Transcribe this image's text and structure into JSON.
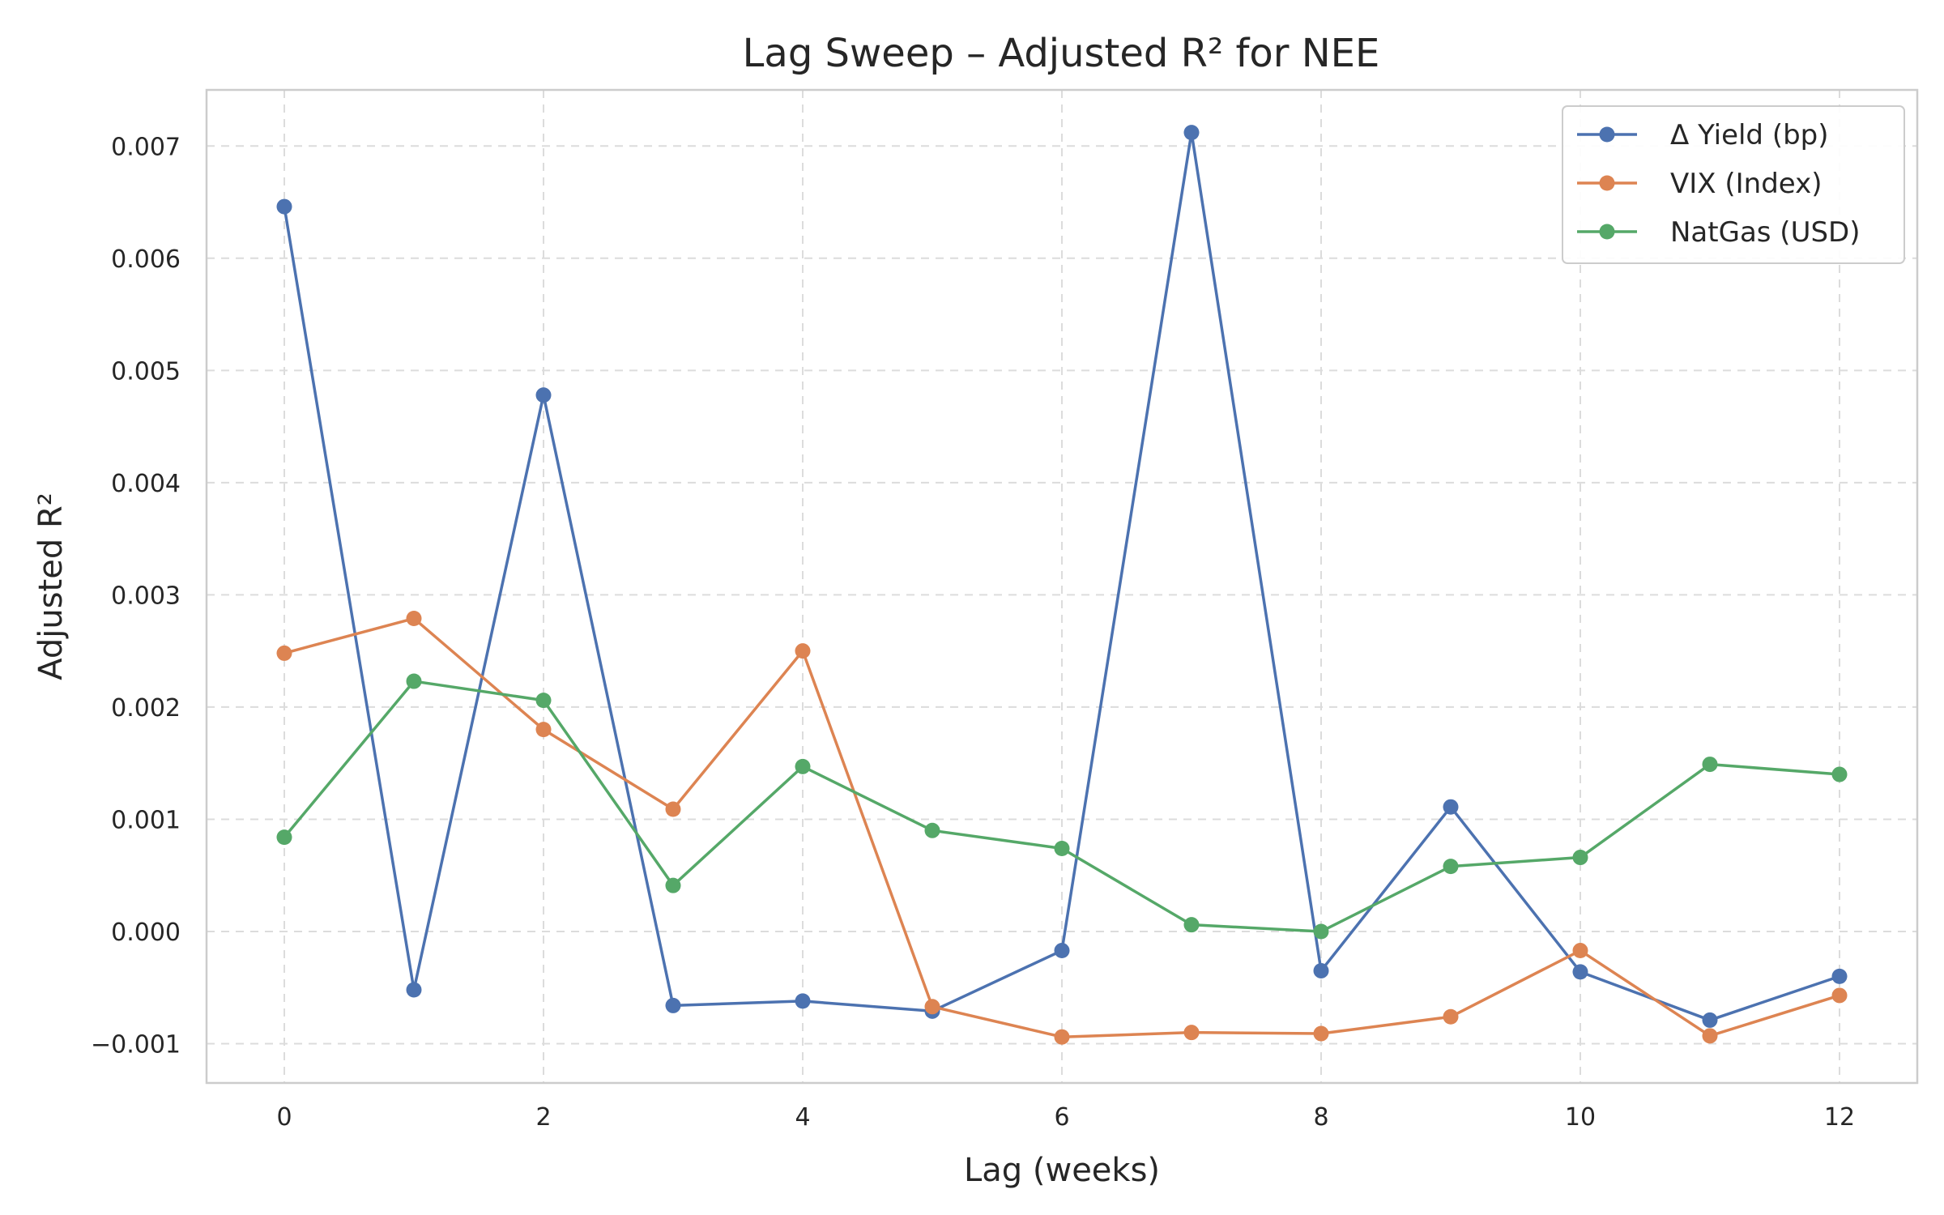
{
  "chart_data": {
    "type": "line",
    "title": "Lag Sweep – Adjusted R² for NEE",
    "xlabel": "Lag (weeks)",
    "ylabel": "Adjusted R²",
    "xlim": [
      -0.6,
      12.6
    ],
    "ylim": [
      -0.00135,
      0.0075
    ],
    "x_ticks": [
      0,
      2,
      4,
      6,
      8,
      10,
      12
    ],
    "x_tick_labels": [
      "0",
      "2",
      "4",
      "6",
      "8",
      "10",
      "12"
    ],
    "y_ticks": [
      -0.001,
      0.0,
      0.001,
      0.002,
      0.003,
      0.004,
      0.005,
      0.006,
      0.007
    ],
    "y_tick_labels": [
      "−0.001",
      "0.000",
      "0.001",
      "0.002",
      "0.003",
      "0.004",
      "0.005",
      "0.006",
      "0.007"
    ],
    "grid": true,
    "legend_position": "top-right",
    "x": [
      0,
      1,
      2,
      3,
      4,
      5,
      6,
      7,
      8,
      9,
      10,
      11,
      12
    ],
    "series": [
      {
        "name": "Δ Yield (bp)",
        "color": "#4c72b0",
        "values": [
          0.00646,
          -0.00052,
          0.00478,
          -0.00066,
          -0.00062,
          -0.00071,
          -0.00017,
          0.00712,
          -0.00035,
          0.00111,
          -0.00036,
          -0.00079,
          -0.0004
        ]
      },
      {
        "name": "VIX (Index)",
        "color": "#dd8452",
        "values": [
          0.00248,
          0.00279,
          0.0018,
          0.00109,
          0.0025,
          -0.00067,
          -0.00094,
          -0.0009,
          -0.00091,
          -0.00076,
          -0.00017,
          -0.00093,
          -0.00057
        ]
      },
      {
        "name": "NatGas (USD)",
        "color": "#55a868",
        "values": [
          0.00084,
          0.00223,
          0.00206,
          0.00041,
          0.00147,
          0.0009,
          0.00074,
          6e-05,
          0.0,
          0.00058,
          0.00066,
          0.00149,
          0.0014
        ]
      }
    ]
  }
}
